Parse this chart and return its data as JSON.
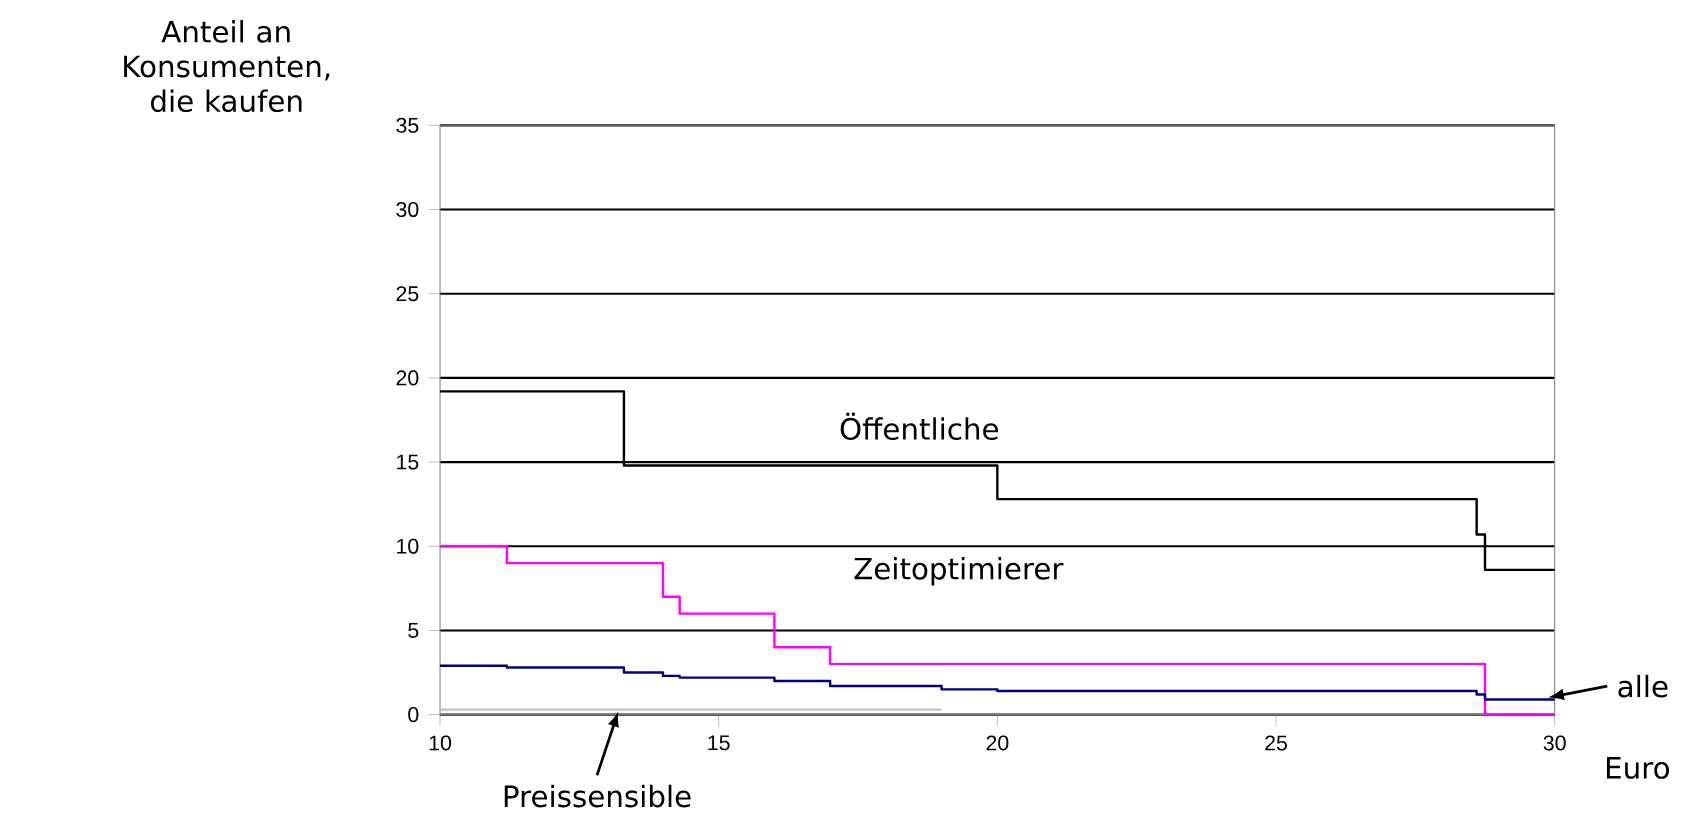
{
  "chart_data": {
    "type": "step",
    "ylabel": "Anteil an Konsumenten, die kaufen",
    "xlabel": "Euro",
    "xlim": [
      10,
      30
    ],
    "ylim": [
      0,
      35
    ],
    "xticks": [
      10,
      15,
      20,
      25,
      30
    ],
    "yticks": [
      0,
      5,
      10,
      15,
      20,
      25,
      30,
      35
    ],
    "grid": "y",
    "marker": "none",
    "line_style": "solid",
    "series": [
      {
        "color": "#000000",
        "x": [
          10,
          13.3,
          20,
          28.6,
          28.75,
          30
        ],
        "values": [
          19.2,
          14.8,
          12.8,
          10.7,
          8.6,
          8.6
        ]
      },
      {
        "color": "#ff00ff",
        "x": [
          10,
          11.2,
          14,
          14.3,
          16,
          17,
          28.75,
          30
        ],
        "values": [
          10,
          9,
          7,
          6,
          4,
          3,
          0,
          0
        ]
      },
      {
        "color": "#000080",
        "x": [
          10,
          11.2,
          13.3,
          14,
          14.3,
          16,
          17,
          19,
          20,
          28.6,
          28.75,
          30
        ],
        "values": [
          2.9,
          2.8,
          2.5,
          2.3,
          2.2,
          2,
          1.7,
          1.5,
          1.4,
          1.2,
          0.9,
          0.9
        ]
      },
      {
        "color": "#c0c0c0",
        "x": [
          10,
          19
        ],
        "values": [
          0.3,
          0.3
        ]
      }
    ],
    "annotations": [
      {
        "text": "Öffentliche",
        "x": 18.6,
        "y": 14.8
      },
      {
        "text": "Zeitoptimierer",
        "x": 19.3,
        "y": 3
      },
      {
        "text": "alle",
        "x": 29.7,
        "y": 0.9
      },
      {
        "text": "Preissensible",
        "x": 13.2,
        "y": 0.2
      }
    ]
  }
}
